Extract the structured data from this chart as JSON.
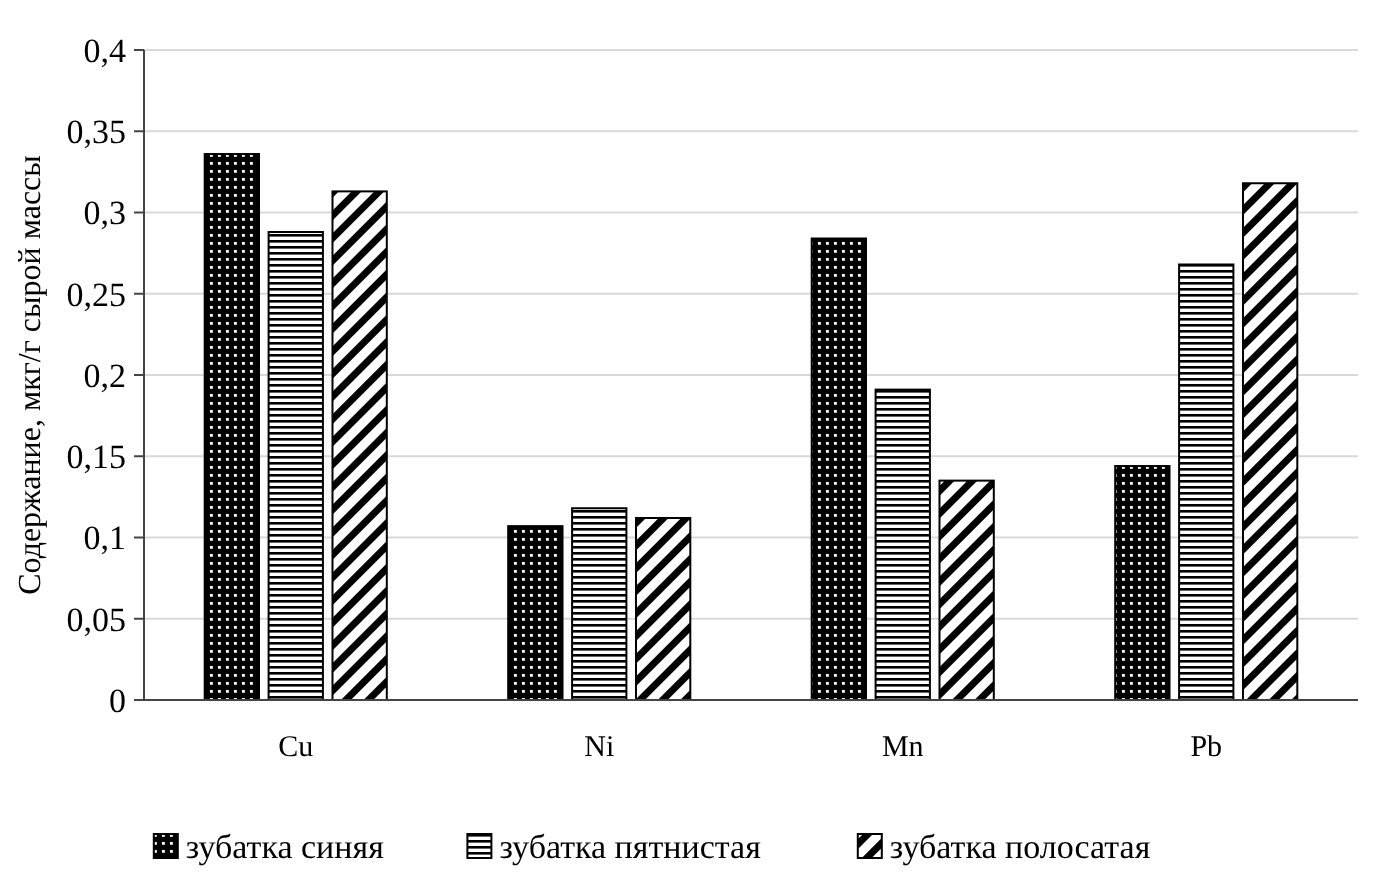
{
  "chart_data": {
    "type": "bar",
    "ylabel": "Содержание, мкг/г сырой массы",
    "categories": [
      "Cu",
      "Ni",
      "Mn",
      "Pb"
    ],
    "series": [
      {
        "name": "зубатка синяя",
        "color": "#000000",
        "values": [
          0.336,
          0.107,
          0.284,
          0.144
        ]
      },
      {
        "name": "зубатка пятнистая",
        "color": "#000000",
        "values": [
          0.288,
          0.118,
          0.191,
          0.268
        ]
      },
      {
        "name": "зубатка полосатая",
        "color": "#000000",
        "values": [
          0.313,
          0.112,
          0.135,
          0.318
        ]
      }
    ],
    "ylim": [
      0,
      0.4
    ],
    "yticks": [
      0,
      {
        "value": 0.05,
        "label": "0,05"
      },
      {
        "value": 0.1,
        "label": "0,1"
      },
      {
        "value": 0.15,
        "label": "0,15"
      },
      {
        "value": 0.2,
        "label": "0,2"
      },
      {
        "value": 0.25,
        "label": "0,25"
      },
      {
        "value": 0.3,
        "label": "0,3"
      },
      {
        "value": 0.35,
        "label": "0,35"
      },
      {
        "value": 0.4,
        "label": "0,4"
      }
    ],
    "grid": "y",
    "legend": "bottom"
  }
}
